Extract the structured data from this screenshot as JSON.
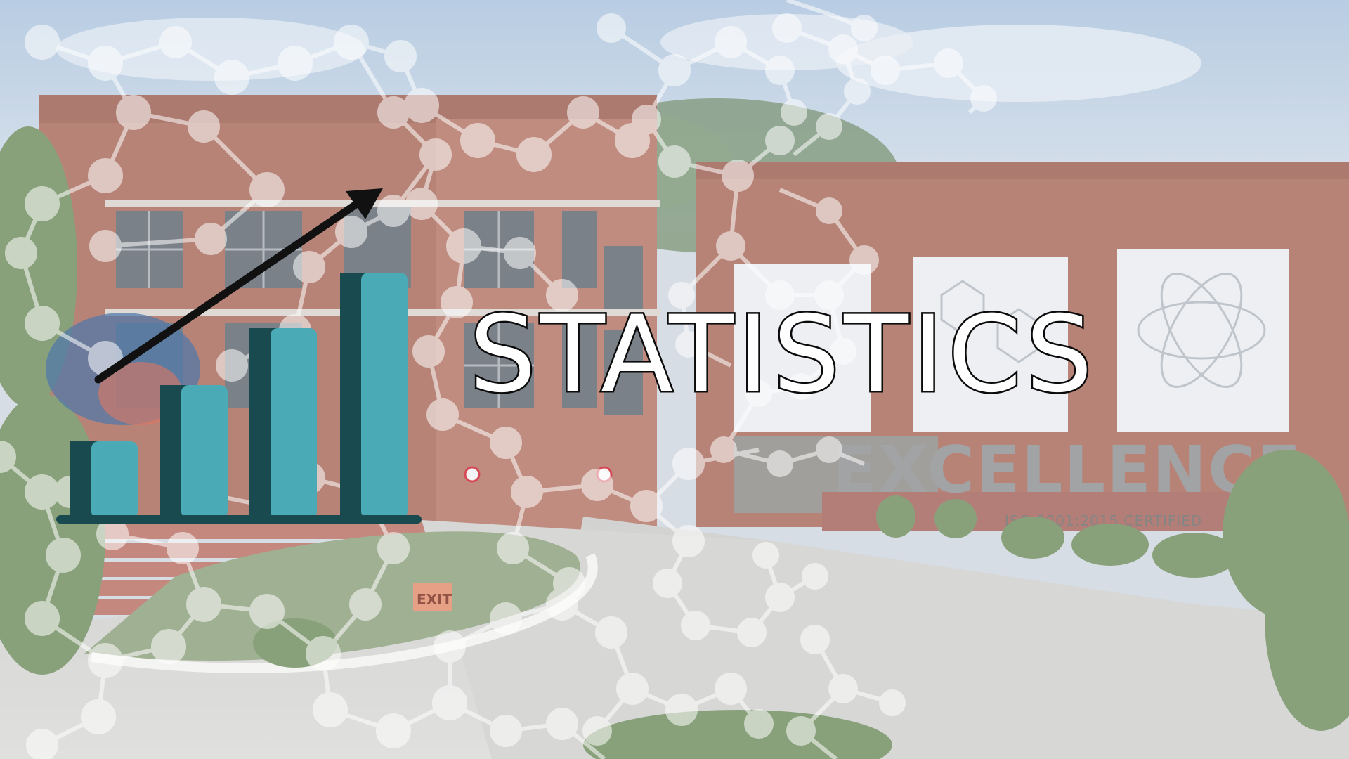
{
  "title": "STATISTICS",
  "signage": {
    "excellence": "EXCELLENCE",
    "iso": "ISO 9001:2015 CERTIFIED",
    "exit": "EXIT"
  },
  "icons": [
    "bar-chart-growth-icon",
    "trend-arrow-icon",
    "molecule-network-overlay"
  ],
  "colors": {
    "bar_light": "#4aaab5",
    "bar_dark": "#184a50",
    "brick": "#a8685a",
    "sky": "#b9cde3",
    "arrow": "#111111",
    "molecule": "#ffffff"
  }
}
